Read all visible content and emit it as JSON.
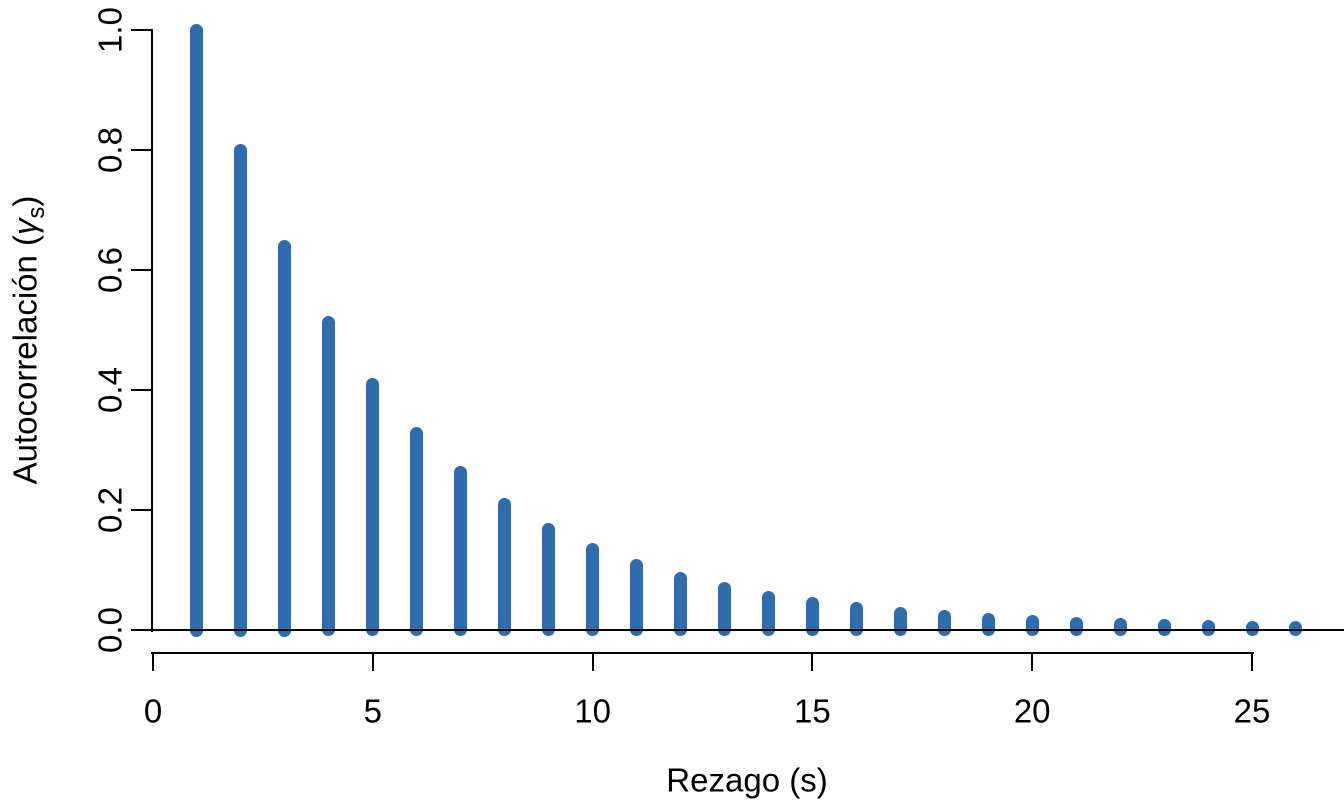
{
  "chart_data": {
    "type": "bar",
    "title": "",
    "xlabel": "Rezago (s)",
    "ylabel": "Autocorrelación (γs)",
    "ylabel_parts": {
      "prefix": "Autocorrelación (",
      "gamma": "γ",
      "subscript": "s",
      "suffix": ")"
    },
    "lags": [
      1,
      2,
      3,
      4,
      5,
      6,
      7,
      8,
      9,
      10,
      11,
      12,
      13,
      14,
      15,
      16,
      17,
      18,
      19,
      20,
      21,
      22,
      23,
      24,
      25,
      26
    ],
    "values": [
      1.0,
      0.8,
      0.64,
      0.512,
      0.4096,
      0.32768,
      0.262144,
      0.209715,
      0.167772,
      0.134218,
      0.107374,
      0.085899,
      0.068719,
      0.054976,
      0.04398,
      0.035184,
      0.028147,
      0.022518,
      0.018014,
      0.014412,
      0.011529,
      0.009223,
      0.007379,
      0.005903,
      0.004722,
      0.003778
    ],
    "x_tick_labels": [
      "0",
      "5",
      "10",
      "15",
      "20",
      "25"
    ],
    "y_tick_labels": [
      "0.0",
      "0.2",
      "0.4",
      "0.6",
      "0.8",
      "1.0"
    ],
    "xlim": [
      0,
      27
    ],
    "ylim": [
      0,
      1.0
    ],
    "grid": false,
    "legend_position": "none",
    "zero_line": true,
    "bar_color": "#2D6DAE",
    "axis_color": "#000000",
    "text_color": "#000000",
    "background_color": "#FFFFFF"
  }
}
